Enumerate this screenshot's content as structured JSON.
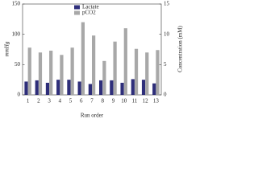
{
  "chart_data": {
    "type": "bar",
    "categories": [
      "1",
      "2",
      "3",
      "4",
      "5",
      "6",
      "7",
      "8",
      "9",
      "10",
      "11",
      "12",
      "13"
    ],
    "series": [
      {
        "name": "Lactate",
        "color": "#2e2e7a",
        "axis": "y2",
        "values": [
          2.2,
          2.4,
          2.0,
          2.5,
          2.5,
          2.2,
          1.8,
          2.4,
          2.4,
          2.0,
          2.6,
          2.5,
          1.9
        ]
      },
      {
        "name": "pCO2",
        "color": "#a8a8a8",
        "values": [
          78,
          70,
          73,
          66,
          78,
          120,
          98,
          56,
          88,
          110,
          76,
          70,
          74
        ]
      }
    ],
    "xlabel": "Run order",
    "ylabel": "mmHg",
    "y2label": "Concentration (mM)",
    "ylim": [
      0,
      150
    ],
    "yticks": [
      0,
      50,
      100,
      150
    ],
    "y2lim": [
      0,
      15
    ],
    "y2ticks": [
      0,
      5,
      10,
      15
    ],
    "legend": "top"
  }
}
